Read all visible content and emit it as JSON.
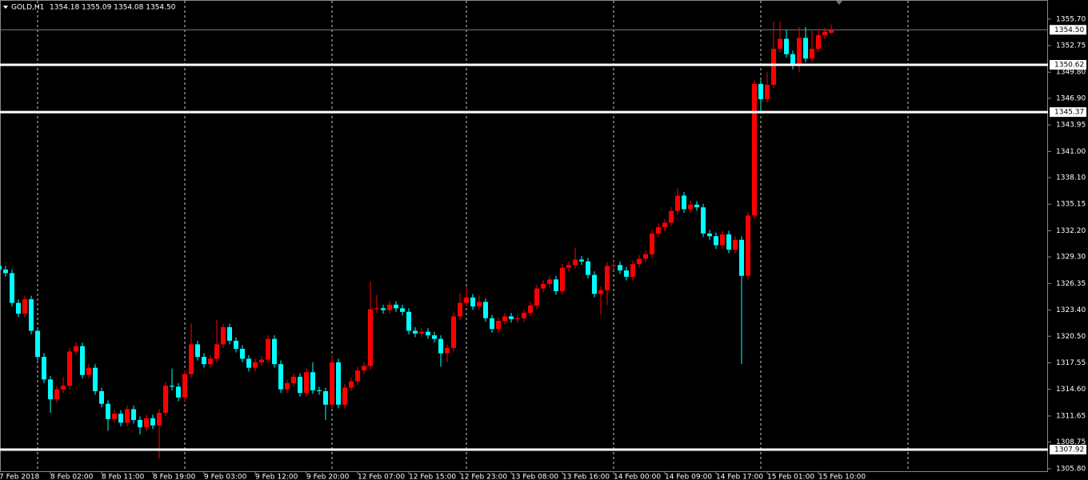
{
  "chart_data": {
    "type": "candlestick",
    "title": "GOLD,H1",
    "ohlc_text": "1354.18 1355.09 1354.08 1354.50",
    "up_color": "#ff0000",
    "down_color": "#00ffff",
    "x": [
      "7 Feb 2018",
      null,
      null,
      null,
      null,
      null,
      null,
      null,
      "8 Feb 02:00",
      null,
      null,
      null,
      null,
      null,
      null,
      null,
      "8 Feb 11:00",
      null,
      null,
      null,
      null,
      null,
      null,
      null,
      "8 Feb 19:00",
      null,
      null,
      null,
      null,
      null,
      null,
      null,
      "9 Feb 03:00",
      null,
      null,
      null,
      null,
      null,
      null,
      null,
      "9 Feb 12:00",
      null,
      null,
      null,
      null,
      null,
      null,
      null,
      "9 Feb 20:00",
      null,
      null,
      null,
      null,
      null,
      null,
      null,
      "12 Feb 07:00",
      null,
      null,
      null,
      null,
      null,
      null,
      null,
      "12 Feb 15:00",
      null,
      null,
      null,
      null,
      null,
      null,
      null,
      "12 Feb 23:00",
      null,
      null,
      null,
      null,
      null,
      null,
      null,
      "13 Feb 08:00",
      null,
      null,
      null,
      null,
      null,
      null,
      null,
      "13 Feb 16:00",
      null,
      null,
      null,
      null,
      null,
      null,
      null,
      "14 Feb 00:00",
      null,
      null,
      null,
      null,
      null,
      null,
      null,
      "14 Feb 09:00",
      null,
      null,
      null,
      null,
      null,
      null,
      null,
      "14 Feb 17:00",
      null,
      null,
      null,
      null,
      null,
      null,
      null,
      "15 Feb 01:00",
      null,
      null,
      null,
      null,
      null,
      null,
      null,
      "15 Feb 10:00",
      null,
      null
    ],
    "open": [
      1328.3,
      1327.9,
      1327.5,
      1324.2,
      1323.0,
      1324.6,
      1321.1,
      1318.2,
      1315.7,
      1313.5,
      1314.6,
      1315.0,
      1318.8,
      1319.4,
      1316.2,
      1317.0,
      1314.4,
      1313.0,
      1311.3,
      1311.9,
      1310.9,
      1312.4,
      1311.2,
      1310.4,
      1311.4,
      1310.6,
      1312.0,
      1315.0,
      1314.9,
      1313.7,
      1316.3,
      1319.6,
      1318.2,
      1317.4,
      1318.0,
      1319.6,
      1321.5,
      1320.0,
      1319.1,
      1318.0,
      1317.0,
      1317.6,
      1317.9,
      1320.2,
      1317.4,
      1314.6,
      1315.3,
      1316.0,
      1314.2,
      1316.5,
      1314.5,
      1314.4,
      1312.9,
      1317.6,
      1312.9,
      1314.8,
      1315.5,
      1316.7,
      1317.2,
      1323.5,
      1323.6,
      1323.4,
      1324.0,
      1323.6,
      1323.2,
      1321.1,
      1320.8,
      1321.0,
      1320.6,
      1320.2,
      1318.6,
      1319.2,
      1322.7,
      1324.2,
      1324.8,
      1323.8,
      1324.3,
      1322.5,
      1321.3,
      1322.2,
      1322.7,
      1322.4,
      1322.5,
      1323.1,
      1323.9,
      1325.8,
      1326.3,
      1326.8,
      1325.5,
      1328.1,
      1328.4,
      1329.0,
      1328.8,
      1327.3,
      1325.2,
      1325.6,
      1328.3,
      1328.4,
      1327.8,
      1327.1,
      1328.5,
      1329.1,
      1329.6,
      1331.9,
      1332.6,
      1333.1,
      1334.4,
      1336.1,
      1334.6,
      1335.1,
      1334.8,
      1331.9,
      1331.6,
      1330.6,
      1331.8,
      1330.1,
      1331.2,
      1327.2,
      1333.9,
      1348.5,
      1346.8,
      1348.4,
      1352.4,
      1353.5,
      1351.8,
      1350.5,
      1353.6,
      1351.3,
      1352.4,
      1353.9,
      1354.18
    ],
    "high": [
      1328.7,
      1328.3,
      1327.9,
      1324.6,
      1325.0,
      1325.0,
      1321.5,
      1318.6,
      1316.1,
      1315.0,
      1316.0,
      1319.2,
      1319.8,
      1319.8,
      1317.4,
      1317.4,
      1314.8,
      1313.4,
      1312.3,
      1312.3,
      1312.8,
      1312.8,
      1311.6,
      1311.8,
      1311.8,
      1312.4,
      1315.4,
      1316.9,
      1315.3,
      1316.7,
      1321.9,
      1320.0,
      1318.6,
      1318.4,
      1322.3,
      1321.9,
      1321.9,
      1320.4,
      1319.5,
      1318.4,
      1318.0,
      1318.3,
      1320.6,
      1320.6,
      1317.8,
      1315.7,
      1316.4,
      1316.4,
      1316.9,
      1317.6,
      1314.9,
      1314.8,
      1318.4,
      1318.0,
      1315.2,
      1315.9,
      1317.1,
      1317.6,
      1326.6,
      1325.1,
      1324.0,
      1324.4,
      1324.4,
      1324.0,
      1323.6,
      1321.5,
      1321.4,
      1321.4,
      1321.0,
      1320.6,
      1319.6,
      1323.1,
      1325.3,
      1326.0,
      1325.2,
      1325.0,
      1324.7,
      1322.9,
      1322.6,
      1323.1,
      1323.1,
      1322.9,
      1323.5,
      1324.3,
      1326.2,
      1326.7,
      1327.2,
      1327.2,
      1328.5,
      1328.8,
      1330.3,
      1329.4,
      1329.2,
      1327.7,
      1326.0,
      1328.7,
      1328.8,
      1328.8,
      1328.2,
      1328.9,
      1329.5,
      1330.0,
      1332.3,
      1333.0,
      1333.5,
      1334.8,
      1336.9,
      1336.5,
      1335.5,
      1335.5,
      1335.2,
      1332.3,
      1332.0,
      1332.2,
      1332.2,
      1331.6,
      1331.6,
      1334.3,
      1348.9,
      1348.9,
      1349.8,
      1355.4,
      1355.4,
      1354.5,
      1352.2,
      1354.8,
      1354.8,
      1354.4,
      1354.6,
      1354.7,
      1355.09
    ],
    "low": [
      1327.5,
      1327.1,
      1323.8,
      1322.6,
      1322.6,
      1320.7,
      1317.8,
      1315.3,
      1312.0,
      1313.1,
      1314.2,
      1314.6,
      1318.4,
      1315.8,
      1315.8,
      1314.0,
      1312.6,
      1310.0,
      1310.9,
      1310.5,
      1310.5,
      1310.8,
      1309.6,
      1310.0,
      1310.2,
      1306.9,
      1311.6,
      1314.5,
      1313.3,
      1313.3,
      1315.9,
      1317.8,
      1317.0,
      1317.0,
      1317.6,
      1319.2,
      1319.6,
      1318.7,
      1317.6,
      1316.6,
      1316.6,
      1317.2,
      1317.5,
      1317.0,
      1314.2,
      1314.2,
      1314.9,
      1313.8,
      1313.8,
      1314.1,
      1314.0,
      1311.2,
      1312.5,
      1312.5,
      1312.5,
      1314.4,
      1315.1,
      1316.3,
      1316.8,
      1323.1,
      1323.0,
      1323.0,
      1323.2,
      1322.8,
      1320.7,
      1320.4,
      1320.4,
      1320.2,
      1319.8,
      1317.1,
      1317.6,
      1318.8,
      1322.3,
      1323.8,
      1323.4,
      1323.4,
      1322.1,
      1320.9,
      1320.9,
      1321.8,
      1322.0,
      1322.0,
      1322.1,
      1322.7,
      1323.5,
      1325.4,
      1325.9,
      1325.1,
      1325.1,
      1327.7,
      1328.0,
      1328.4,
      1326.9,
      1324.8,
      1322.9,
      1324.0,
      1327.9,
      1327.4,
      1326.7,
      1326.7,
      1328.1,
      1328.7,
      1329.2,
      1331.5,
      1332.2,
      1332.7,
      1334.0,
      1334.2,
      1334.2,
      1334.4,
      1331.5,
      1331.2,
      1330.2,
      1330.2,
      1329.7,
      1329.7,
      1317.4,
      1326.8,
      1333.5,
      1345.4,
      1346.4,
      1348.0,
      1352.0,
      1351.4,
      1350.1,
      1349.8,
      1350.9,
      1350.9,
      1352.0,
      1353.5,
      1354.08
    ],
    "close": [
      1327.9,
      1327.5,
      1324.2,
      1323.0,
      1324.6,
      1321.1,
      1318.2,
      1315.7,
      1313.5,
      1314.6,
      1315.0,
      1318.8,
      1319.4,
      1316.2,
      1317.0,
      1314.4,
      1313.0,
      1311.3,
      1311.9,
      1310.9,
      1312.4,
      1311.2,
      1310.4,
      1311.4,
      1310.6,
      1312.0,
      1315.0,
      1314.9,
      1313.7,
      1316.3,
      1319.6,
      1318.2,
      1317.4,
      1318.0,
      1319.6,
      1321.5,
      1320.0,
      1319.1,
      1318.0,
      1317.0,
      1317.6,
      1317.9,
      1320.2,
      1317.4,
      1314.6,
      1315.3,
      1316.0,
      1314.2,
      1316.5,
      1314.5,
      1314.4,
      1312.9,
      1317.6,
      1312.9,
      1314.8,
      1315.5,
      1316.7,
      1317.2,
      1323.5,
      1323.6,
      1323.4,
      1324.0,
      1323.6,
      1323.2,
      1321.1,
      1320.8,
      1321.0,
      1320.6,
      1320.2,
      1318.6,
      1319.2,
      1322.7,
      1324.2,
      1324.8,
      1323.8,
      1324.3,
      1322.5,
      1321.3,
      1322.2,
      1322.7,
      1322.4,
      1322.5,
      1323.1,
      1323.9,
      1325.8,
      1326.3,
      1326.8,
      1325.5,
      1328.1,
      1328.4,
      1329.0,
      1328.8,
      1327.3,
      1325.2,
      1325.6,
      1328.3,
      1328.4,
      1327.8,
      1327.1,
      1328.5,
      1329.1,
      1329.6,
      1331.9,
      1332.6,
      1333.1,
      1334.4,
      1336.1,
      1334.6,
      1335.1,
      1334.8,
      1331.9,
      1331.6,
      1330.6,
      1331.8,
      1330.1,
      1331.2,
      1327.2,
      1333.9,
      1348.5,
      1346.8,
      1348.4,
      1352.4,
      1353.5,
      1351.8,
      1350.5,
      1353.6,
      1351.3,
      1352.4,
      1353.9,
      1354.3,
      1354.5
    ],
    "ylim": [
      1305.52,
      1357.72
    ],
    "yticks": [
      {
        "value": 1355.7,
        "label": "1355.70"
      },
      1352.75,
      {
        "value": 1349.8,
        "label": "1349.80"
      },
      {
        "value": 1346.9,
        "label": "1346.90"
      },
      1343.95,
      {
        "value": 1341,
        "label": "1341.00"
      },
      {
        "value": 1338.1,
        "label": "1338.10"
      },
      1335.15,
      {
        "value": 1332.2,
        "label": "1332.20"
      },
      {
        "value": 1329.3,
        "label": "1329.30"
      },
      1326.35,
      {
        "value": 1323.4,
        "label": "1323.40"
      },
      {
        "value": 1320.5,
        "label": "1320.50"
      },
      1317.55,
      {
        "value": 1314.6,
        "label": "1314.60"
      },
      1311.65,
      1308.75,
      {
        "value": 1305.8,
        "label": "1305.80"
      }
    ],
    "levels": [
      1350.62,
      1345.37,
      1307.92
    ],
    "current_price": {
      "value": 1354.5,
      "label": "1354.50"
    }
  }
}
